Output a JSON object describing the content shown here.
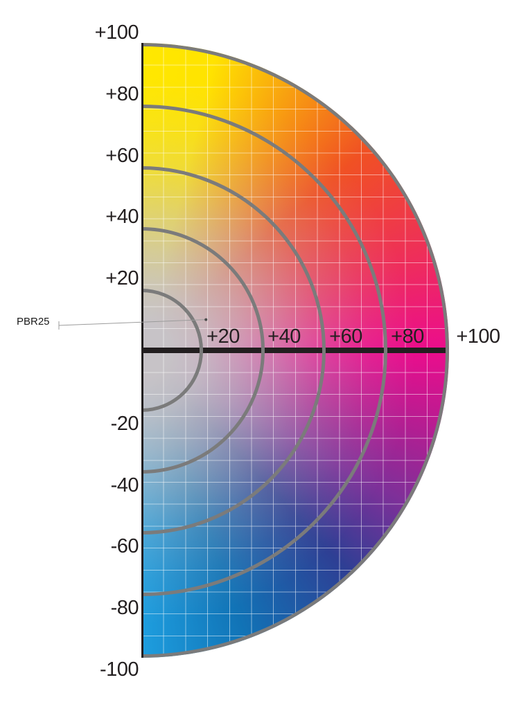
{
  "chart_data": {
    "type": "heatmap",
    "title": "",
    "description": "Right half of a CIELAB a*/b* chromaticity color wheel: hue varies by angle, saturation grows from neutral gray center outward; concentric rings every 20 units, white square grid, thick black +a axis, vertical b axis from +100 (yellow, top) to -100 (blue, bottom)",
    "a_axis_ticks": [
      {
        "label": "+20",
        "value": 20
      },
      {
        "label": "+40",
        "value": 40
      },
      {
        "label": "+60",
        "value": 60
      },
      {
        "label": "+80",
        "value": 80
      },
      {
        "label": "+100",
        "value": 100
      }
    ],
    "b_axis_ticks": [
      {
        "label": "+100",
        "value": 100
      },
      {
        "label": "+80",
        "value": 80
      },
      {
        "label": "+60",
        "value": 60
      },
      {
        "label": "+40",
        "value": 40
      },
      {
        "label": "+20",
        "value": 20
      },
      {
        "label": "-20",
        "value": -20
      },
      {
        "label": "-40",
        "value": -40
      },
      {
        "label": "-60",
        "value": -60
      },
      {
        "label": "-80",
        "value": -80
      },
      {
        "label": "-100",
        "value": -100
      }
    ],
    "ring_values": [
      20,
      40,
      60,
      80,
      100
    ],
    "axis_range": {
      "a": [
        0,
        100
      ],
      "b": [
        -100,
        100
      ]
    },
    "annotation": {
      "label": "PBR25",
      "a": 21,
      "b": 10
    },
    "hue_stops": [
      {
        "angle": 0,
        "color": "#FFE800"
      },
      {
        "angle": 14,
        "color": "#FFE300"
      },
      {
        "angle": 48,
        "color": "#F05123"
      },
      {
        "angle": 72,
        "color": "#EE2D5C"
      },
      {
        "angle": 90,
        "color": "#EB0D8C"
      },
      {
        "angle": 106,
        "color": "#B21E92"
      },
      {
        "angle": 120,
        "color": "#7E3099"
      },
      {
        "angle": 137,
        "color": "#2E3F94"
      },
      {
        "angle": 160,
        "color": "#1173B6"
      },
      {
        "angle": 180,
        "color": "#1E9EDF"
      }
    ],
    "center_color": "#C7C3C7",
    "center_rgb": "199,195,199",
    "desat_stops": [
      {
        "r": 0,
        "a": 1
      },
      {
        "r": 40,
        "a": 1
      },
      {
        "r": 90,
        "a": 0.92
      },
      {
        "r": 145,
        "a": 0.75
      },
      {
        "r": 205,
        "a": 0.52
      },
      {
        "r": 265,
        "a": 0.28
      },
      {
        "r": 330,
        "a": 0.1
      },
      {
        "r": 395,
        "a": 0
      }
    ],
    "grid": {
      "on": true,
      "color": "rgba(255,255,255,0.5)",
      "spacing_units": 7.1
    },
    "ring_color": "#7B7B7B",
    "axis_color": "#221E1F",
    "label_color": "#231F20",
    "leader_color": "#9B9B9B",
    "legend": {
      "position": "none"
    }
  }
}
